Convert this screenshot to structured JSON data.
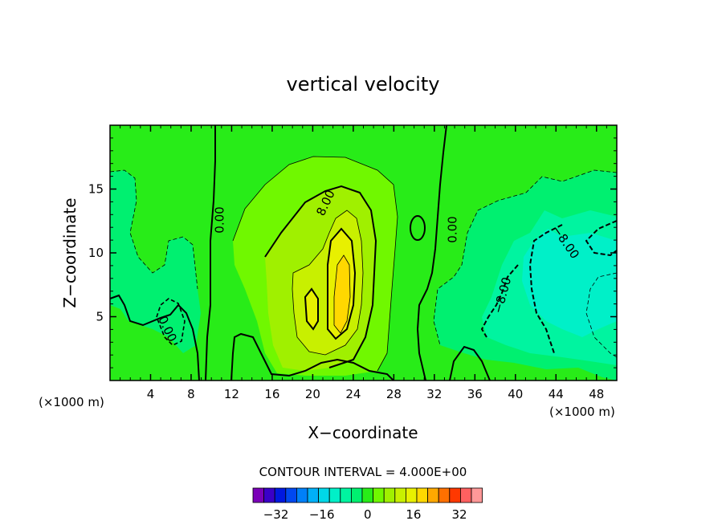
{
  "chart_data": {
    "type": "contour",
    "title": "vertical velocity",
    "xlabel": "X−coordinate",
    "ylabel": "Z−coordinate",
    "x_units": "(×1000 m)",
    "xlim": [
      0,
      50
    ],
    "ylim": [
      0,
      20
    ],
    "x_ticks": [
      4,
      8,
      12,
      16,
      20,
      24,
      28,
      32,
      36,
      40,
      44,
      48
    ],
    "y_ticks": [
      5,
      10,
      15
    ],
    "contour_interval_label": "CONTOUR INTERVAL = 4.000E+00",
    "contour_labels": [
      "0.00",
      "8.00",
      "0.00",
      "0.00",
      "−8.00",
      "−8.00"
    ],
    "colorbar": {
      "tick_labels": [
        "−32",
        "−16",
        "0",
        "16",
        "32"
      ],
      "tick_values": [
        -32,
        -16,
        0,
        16,
        32
      ],
      "bins": [
        -40,
        -36,
        -32,
        -28,
        -24,
        -20,
        -16,
        -12,
        -8,
        -4,
        0,
        4,
        8,
        12,
        16,
        20,
        24,
        28,
        32,
        36,
        40
      ],
      "colors": [
        "#7a00b8",
        "#3a00c8",
        "#0018e0",
        "#0048f0",
        "#0080f8",
        "#00b0f8",
        "#00d8e8",
        "#00f0c8",
        "#00f4a0",
        "#00f070",
        "#28ec18",
        "#70f800",
        "#a0f000",
        "#c8f000",
        "#e8f000",
        "#ffd800",
        "#ffa800",
        "#ff7000",
        "#ff3800",
        "#ff6060",
        "#ff9898"
      ]
    },
    "background_color": "#28ec18"
  }
}
